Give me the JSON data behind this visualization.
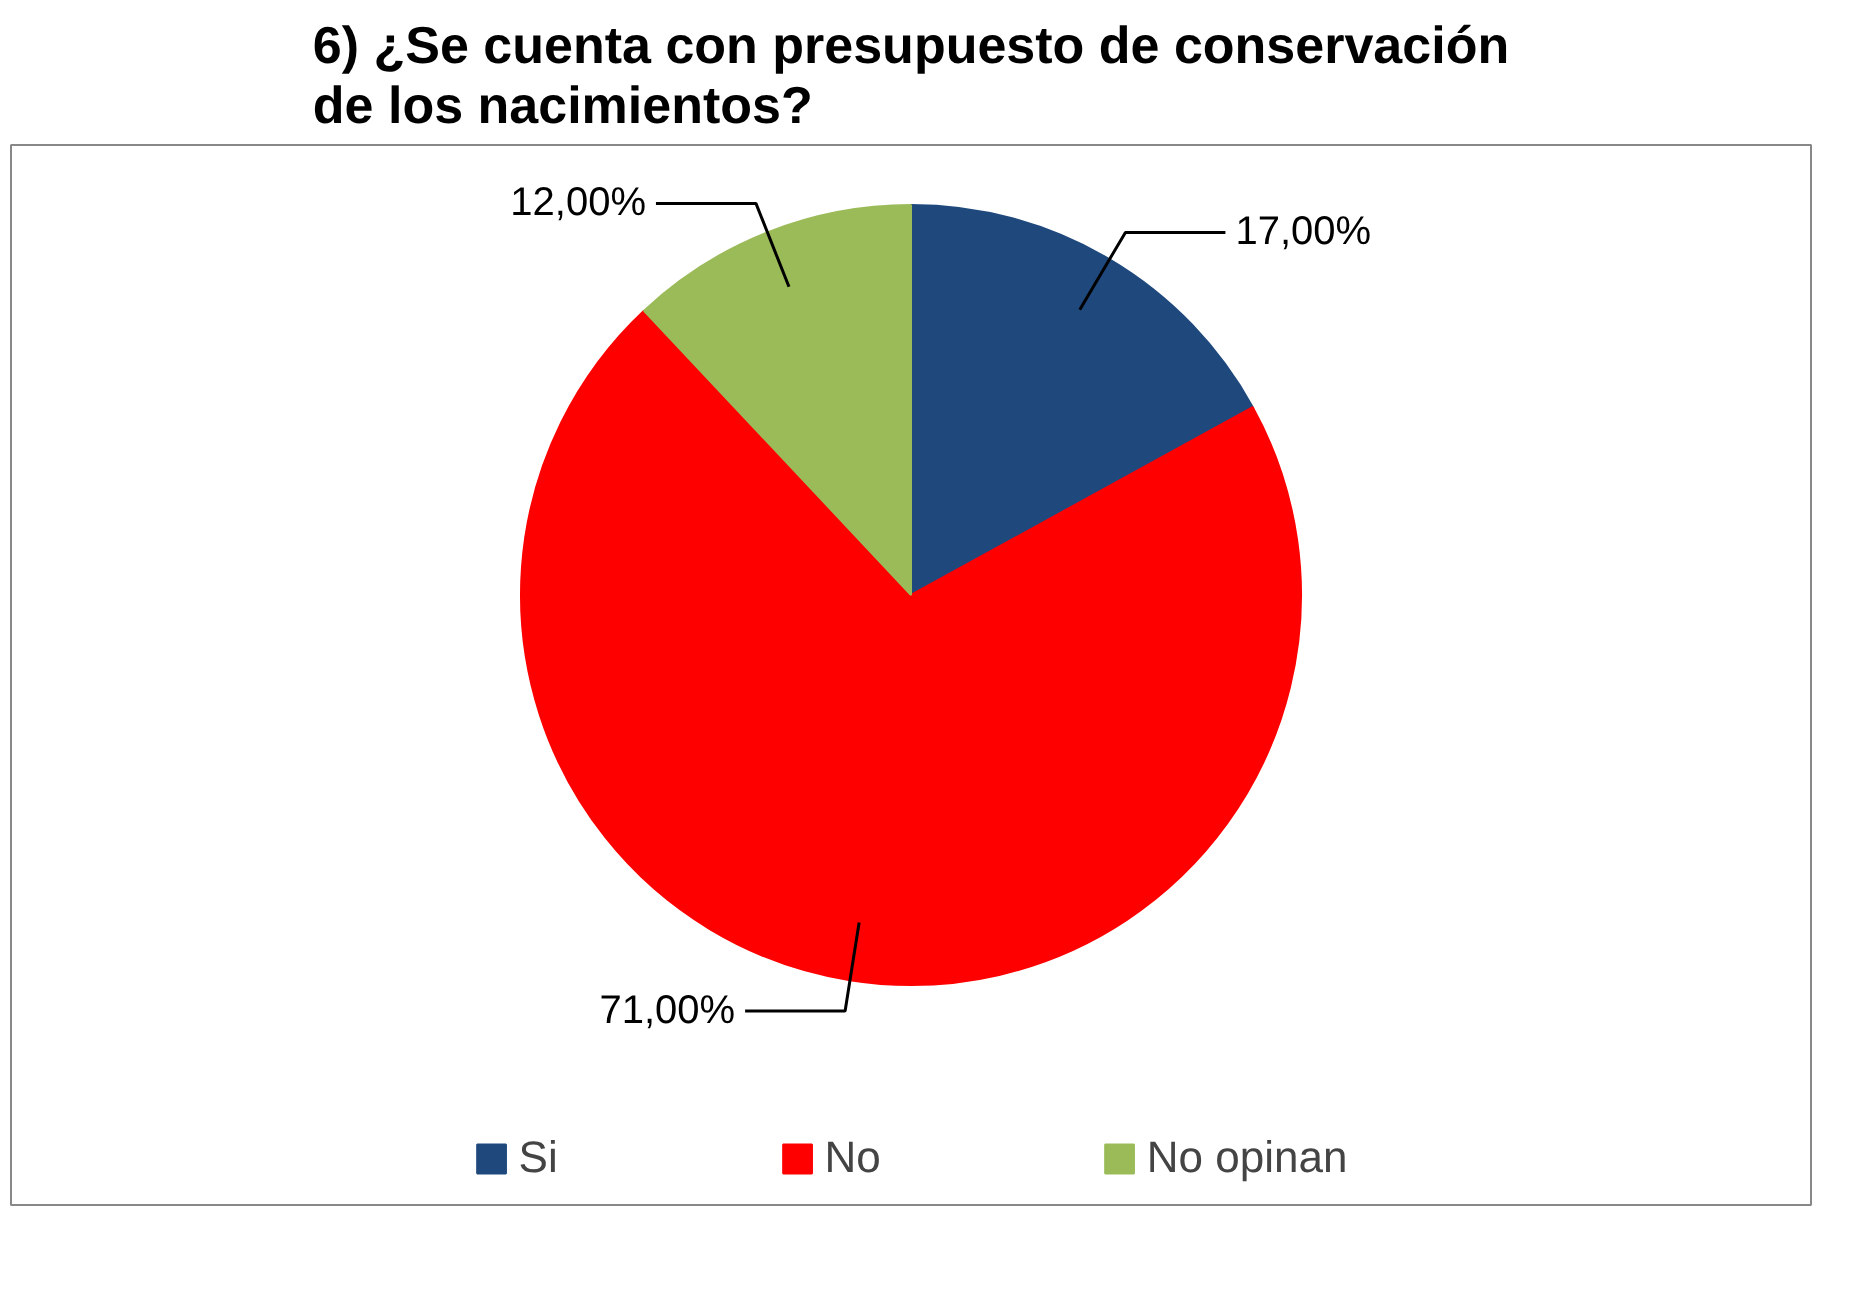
{
  "chart_data": {
    "type": "pie",
    "title": "6) ¿Se cuenta con presupuesto de conservación de los nacimientos?",
    "categories": [
      "Si",
      "No",
      "No opinan"
    ],
    "values": [
      17,
      71,
      12
    ],
    "colors": [
      "#1f497d",
      "#ff0000",
      "#9bbb59"
    ],
    "value_labels": [
      "17,00%",
      "71,00%",
      "12,00%"
    ],
    "legend": "bottom"
  }
}
